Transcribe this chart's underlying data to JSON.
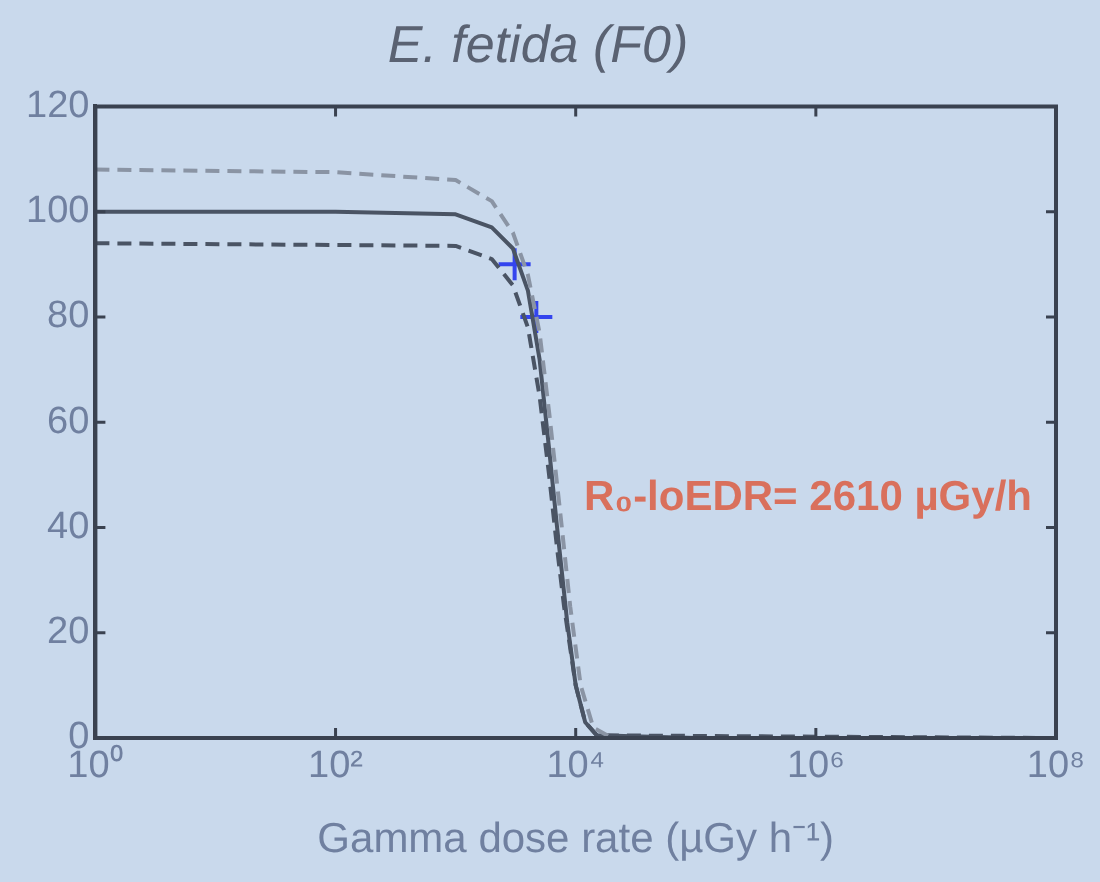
{
  "chart_data": {
    "type": "line",
    "title": "E. fetida (F0)",
    "xlabel": "Gamma dose rate (µGy h⁻¹)",
    "log": "x",
    "xlim": [
      1,
      100000000
    ],
    "xticks": [
      {
        "value": 1,
        "label": "10⁰"
      },
      {
        "value": 100,
        "label": "10²"
      },
      {
        "value": 10000,
        "label": "10⁴"
      },
      {
        "value": 1000000,
        "label": "10⁶"
      },
      {
        "value": 100000000,
        "label": "10⁸"
      }
    ],
    "ylim": [
      0,
      120
    ],
    "yticks": [
      0,
      20,
      40,
      60,
      80,
      100,
      120
    ],
    "grid": false,
    "legend": false,
    "marker": "none",
    "annotations": [
      "R₀-loEDR= 2610 µGy/h"
    ],
    "series": [
      {
        "type": "line",
        "color": "#8a94a4",
        "line_style": "dashed",
        "x": [
          1,
          100,
          1000,
          2000,
          3000,
          4000,
          5000,
          6000,
          7500,
          9000,
          11000,
          14000,
          20000,
          100000000
        ],
        "values": [
          108,
          107.5,
          106,
          102,
          96,
          88,
          77,
          62,
          42,
          25,
          10,
          2,
          0,
          0
        ]
      },
      {
        "type": "line",
        "color": "#4a5464",
        "line_style": "solid",
        "x": [
          1,
          100,
          1000,
          2000,
          3000,
          4000,
          5000,
          6000,
          7000,
          8500,
          10000,
          12000,
          15000,
          100000,
          100000000
        ],
        "values": [
          100,
          100,
          99.5,
          97,
          93,
          85,
          72,
          55,
          40,
          22,
          10,
          3,
          0.5,
          0,
          0
        ]
      },
      {
        "type": "line",
        "color": "#4a5464",
        "line_style": "dashed",
        "x": [
          1,
          1000,
          2000,
          3000,
          4000,
          5000,
          6000,
          7000,
          8000,
          10000,
          12000,
          15000,
          100000000
        ],
        "values": [
          94,
          93.5,
          91,
          86,
          78,
          65,
          50,
          36,
          25,
          10,
          3,
          0.5,
          0
        ]
      },
      {
        "type": "scatter",
        "color": "#3344ee",
        "marker": "cross",
        "x": [
          3100,
          4700
        ],
        "values": [
          90,
          80
        ]
      }
    ]
  }
}
